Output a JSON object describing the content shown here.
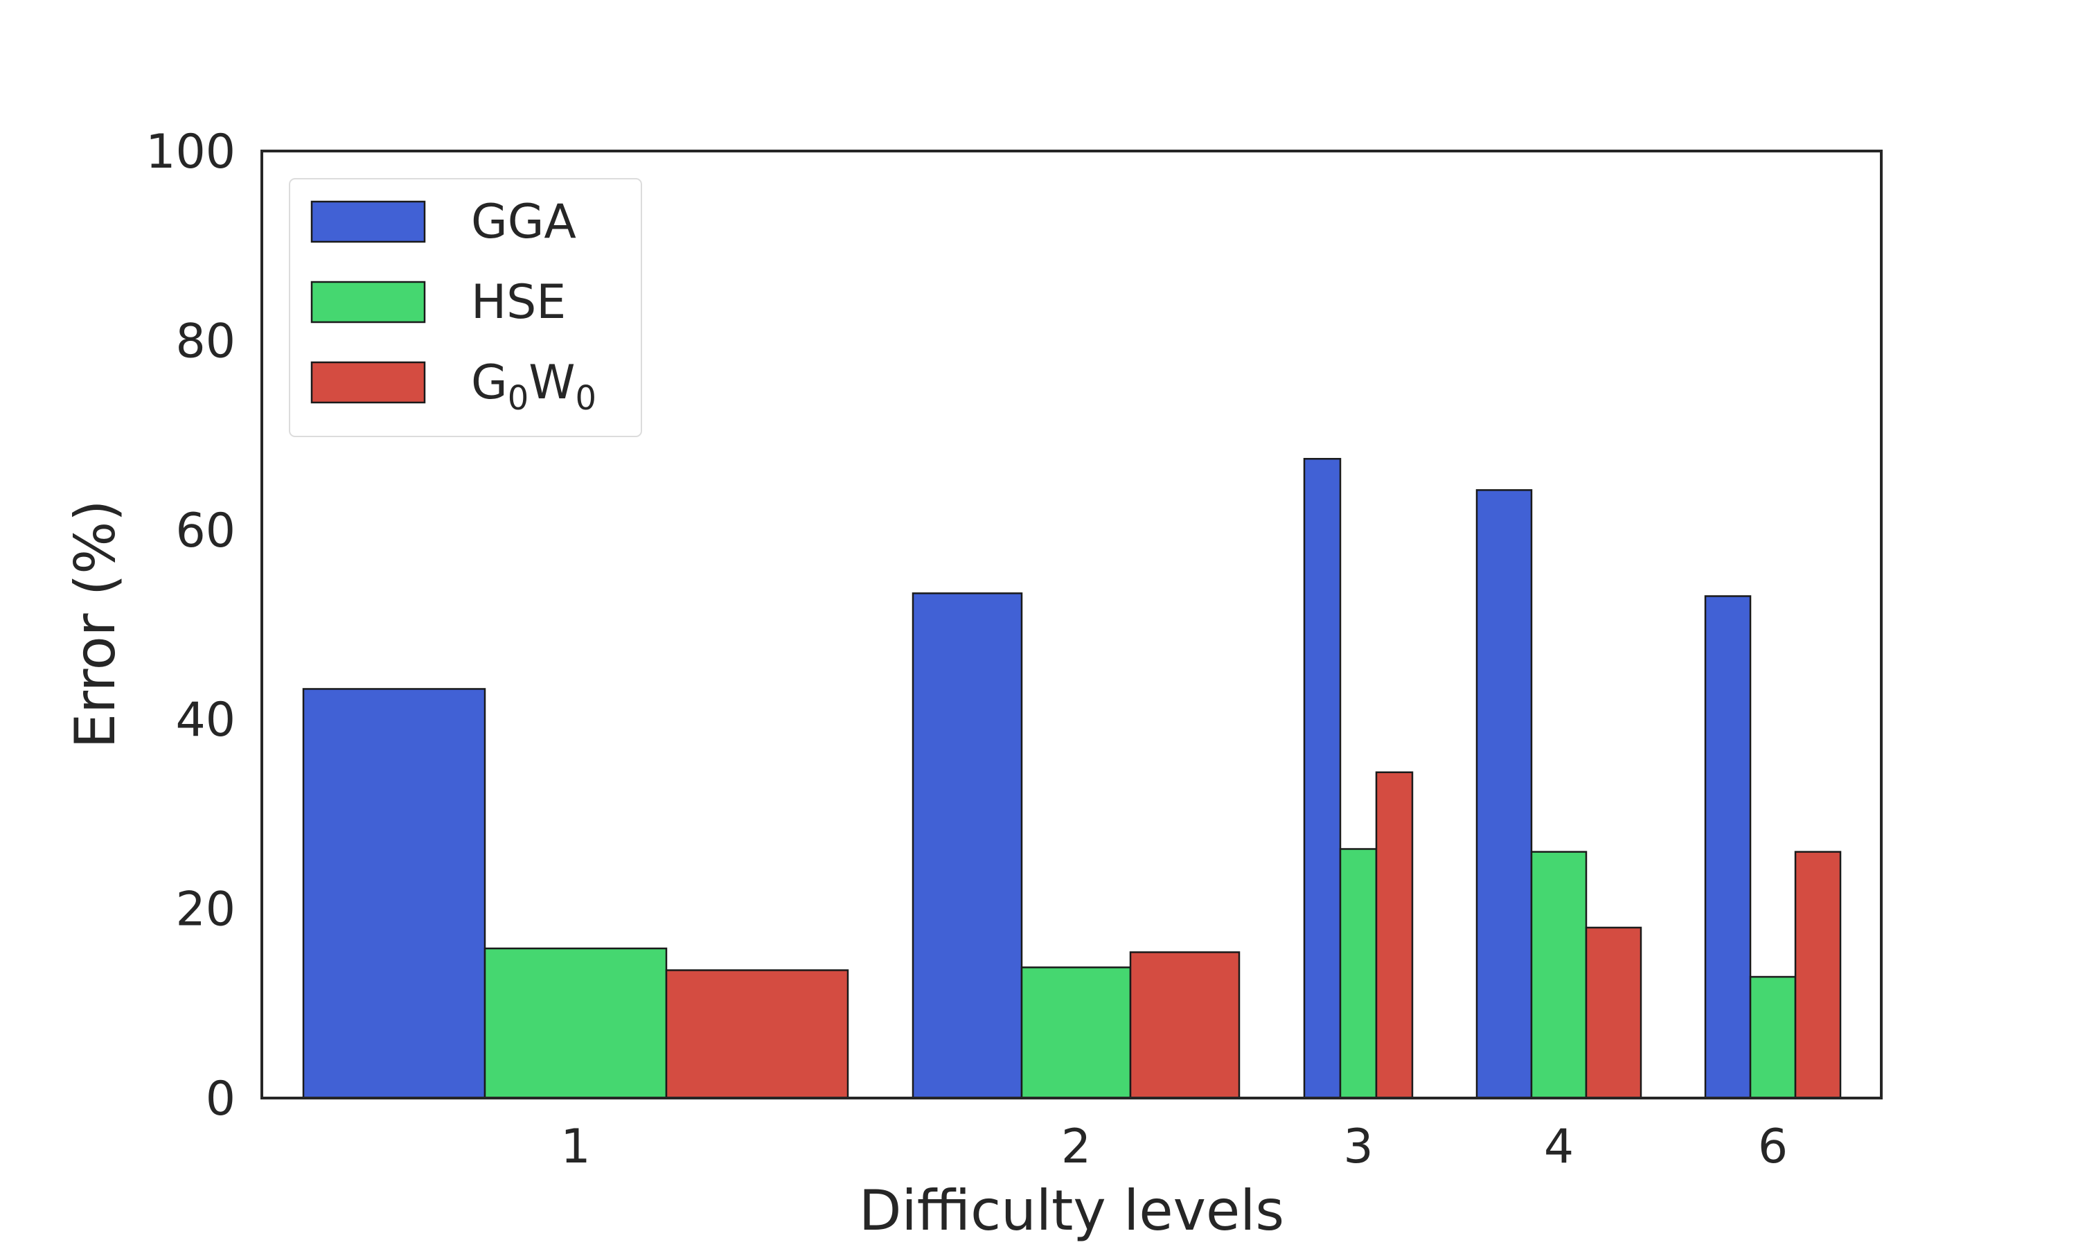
{
  "chart_data": {
    "type": "bar",
    "title": "",
    "xlabel": "Difficulty levels",
    "ylabel": "Error (%)",
    "ylim": [
      0,
      100
    ],
    "yticks": [
      "0",
      "20",
      "40",
      "60",
      "80",
      "100"
    ],
    "grid": false,
    "legend_position": "top-left",
    "categories": [
      "1",
      "2",
      "3",
      "4",
      "6"
    ],
    "series": [
      {
        "name": "GGA",
        "color": "#4161d5",
        "values": [
          43.2,
          53.3,
          67.5,
          64.2,
          53.0
        ]
      },
      {
        "name": "HSE",
        "color": "#45d770",
        "values": [
          15.8,
          13.8,
          26.3,
          26.0,
          12.8
        ]
      },
      {
        "name": "G0W0",
        "color": "#d44c41",
        "values": [
          13.5,
          15.4,
          34.4,
          18.0,
          26.0
        ]
      }
    ],
    "legend": [
      {
        "base": "GGA",
        "sub1": "",
        "mid": "",
        "sub2": ""
      },
      {
        "base": "HSE",
        "sub1": "",
        "mid": "",
        "sub2": ""
      },
      {
        "base": "G",
        "sub1": "0",
        "mid": "W",
        "sub2": "0"
      }
    ]
  }
}
